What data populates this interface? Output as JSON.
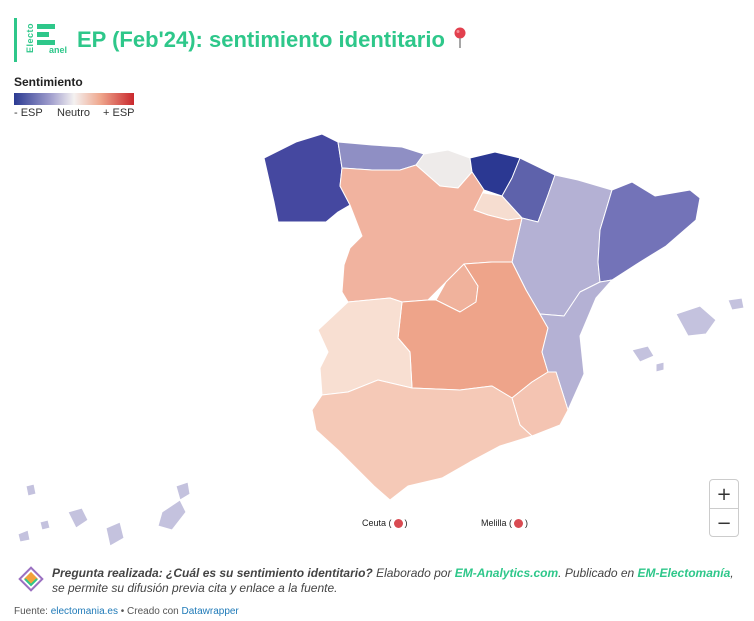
{
  "header": {
    "logo_vertical": "Electo",
    "logo_sub": "anel",
    "title": "EP (Feb'24): sentimiento identitario",
    "pin_icon": "map-pin-icon"
  },
  "legend": {
    "title": "Sentimiento",
    "low": "- ESP",
    "mid": "Neutro",
    "high": "+ ESP",
    "colors": [
      "#2b3a92",
      "#9e9ccc",
      "#f4f1f1",
      "#efa78d",
      "#c9282d"
    ]
  },
  "map": {
    "regions": [
      {
        "name": "Galicia",
        "color": "#4548a0"
      },
      {
        "name": "Asturias",
        "color": "#8f8fc4"
      },
      {
        "name": "Cantabria",
        "color": "#eeebea"
      },
      {
        "name": "País Vasco",
        "color": "#2b3892"
      },
      {
        "name": "Navarra",
        "color": "#5e62ab"
      },
      {
        "name": "La Rioja",
        "color": "#f6ddd0"
      },
      {
        "name": "Aragón",
        "color": "#b4b1d4"
      },
      {
        "name": "Cataluña",
        "color": "#7373b8"
      },
      {
        "name": "Castilla y León",
        "color": "#f1b39f"
      },
      {
        "name": "Madrid",
        "color": "#f0b29c"
      },
      {
        "name": "Castilla-La Mancha",
        "color": "#eea48a"
      },
      {
        "name": "Extremadura",
        "color": "#f8dfd2"
      },
      {
        "name": "Comunidad Valenciana",
        "color": "#b4b1d4"
      },
      {
        "name": "Murcia",
        "color": "#f4c4b2"
      },
      {
        "name": "Andalucía",
        "color": "#f5c9b7"
      },
      {
        "name": "Islas Baleares",
        "color": "#c4c2de"
      },
      {
        "name": "Canarias",
        "color": "#c4c2de"
      }
    ],
    "ceuta_label": "Ceuta (",
    "ceuta_close": ")",
    "melilla_label": "Melilla (",
    "melilla_close": ")",
    "zoom_in": "+",
    "zoom_out": "−"
  },
  "footer": {
    "question_label": "Pregunta realizada: ¿Cuál es su sentimiento identitario?",
    "made_by": " Elaborado por ",
    "analytics": "EM-Analytics.com",
    "published": ". Publicado en ",
    "electomania": "EM-Electomanía",
    "permission": ", se permite su difusión previa cita y enlace a la fuente.",
    "source_label": "Fuente: ",
    "source_link": "electomania.es",
    "created": " • Creado con ",
    "tool_link": "Datawrapper"
  }
}
